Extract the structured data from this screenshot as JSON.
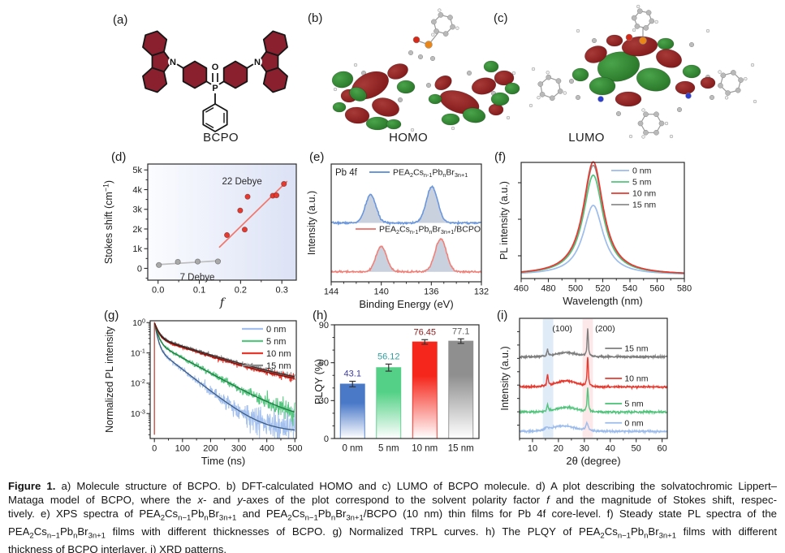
{
  "panels": {
    "a": {
      "label": "(a)",
      "name": "BCPO"
    },
    "b": {
      "label": "(b)",
      "name": "HOMO"
    },
    "c": {
      "label": "(c)",
      "name": "LUMO"
    },
    "d": {
      "label": "(d)"
    },
    "e": {
      "label": "(e)"
    },
    "f": {
      "label": "(f)"
    },
    "g": {
      "label": "(g)"
    },
    "h": {
      "label": "(h)"
    },
    "i": {
      "label": "(i)"
    }
  },
  "caption": {
    "lines": [
      "**Figure 1.**  a) Molecule structure of BCPO. b) DFT-calculated HOMO and c) LUMO of BCPO molecule. d) A plot describing the solvatochromic Lippert–",
      "Mataga model of BCPO, where the *x*- and *y*-axes of the plot correspond to the solvent polarity factor *f* and the magnitude of Stokes shift, respec-",
      "tively. e) XPS spectra of PEA~2~Cs~n−1~Pb~n~Br~3n+1~ and PEA~2~Cs~n−1~Pb~n~Br~3n+1~/BCPO (10 nm) thin films for Pb 4f core-level. f) Steady state PL spectra of the",
      "PEA~2~Cs~n−1~Pb~n~Br~3n+1~ films with different thicknesses of BCPO. g) Normalized TRPL curves. h) The PLQY of PEA~2~Cs~n−1~Pb~n~Br~3n+1~ films with different",
      "thickness of BCPO interlayer. i) XRD patterns."
    ]
  },
  "colors": {
    "red": "#e8392f",
    "blue_light": "#9cbcec",
    "green": "#52c47c",
    "gray": "#8c8c8c",
    "xps_blue": "#6b97dd",
    "xps_red": "#f08078",
    "carbazole_fill": "#8a1f2d",
    "orbital_red": "#7b1113",
    "orbital_green": "#206a20",
    "band_blue": "#cfe0f4",
    "band_pink": "#fadcdc"
  },
  "chart_data": [
    {
      "id": "d",
      "type": "scatter",
      "xlabel": "f",
      "xlabel_italic": true,
      "ylabel": "Stokes shift (cm^−1^)",
      "xlim": [
        -0.025,
        0.335
      ],
      "ylim": [
        -600,
        5300
      ],
      "xticks": [
        0.0,
        0.1,
        0.2,
        0.3
      ],
      "xtick_labels": [
        "0.0",
        "0.1",
        "0.2",
        "0.3"
      ],
      "yticks": [
        0,
        1000,
        2000,
        3000,
        4000,
        5000
      ],
      "ytick_labels": [
        "0",
        "1k",
        "2k",
        "3k",
        "4k",
        "5k"
      ],
      "x_minor": 0.05,
      "y_minor": 500,
      "bg_gradient": [
        "#fbfcff",
        "#dce2f5"
      ],
      "series": [
        {
          "name": "7 Debye",
          "color": "#a9a9a9",
          "line_color": "#bdbdbd",
          "points": [
            [
              0.002,
              170
            ],
            [
              0.048,
              330
            ],
            [
              0.096,
              345
            ],
            [
              0.145,
              350
            ]
          ],
          "fit_line": [
            [
              -0.005,
              185
            ],
            [
              0.152,
              390
            ]
          ]
        },
        {
          "name": "22 Debye",
          "color": "#e8392f",
          "line_color": "#f2766b",
          "points": [
            [
              0.167,
              1690
            ],
            [
              0.199,
              2940
            ],
            [
              0.21,
              1970
            ],
            [
              0.217,
              3640
            ],
            [
              0.278,
              3690
            ],
            [
              0.287,
              3710
            ],
            [
              0.305,
              4290
            ]
          ],
          "fit_line": [
            [
              0.148,
              1060
            ],
            [
              0.313,
              4430
            ]
          ]
        }
      ],
      "annotations": [
        {
          "text": "22 Debye",
          "x": 0.155,
          "y": 4430,
          "anchor": "start"
        },
        {
          "text": "7 Debye",
          "x": 0.095,
          "y": -430,
          "anchor": "middle"
        }
      ]
    },
    {
      "id": "e",
      "type": "xps",
      "xlabel": "Binding Energy (eV)",
      "ylabel": "Intensity (a.u.)",
      "xlim": [
        144,
        132
      ],
      "xticks": [
        144,
        140,
        136,
        132
      ],
      "x_minor": 1,
      "corner_label": "Pb 4f",
      "fill_color": "#93a3c0",
      "series": [
        {
          "name": "PEA~2~Cs~n-1~Pb~n~Br~3n+1~",
          "color": "#6b97dd",
          "baseline": 0.5,
          "peaks": [
            {
              "center": 140.85,
              "height": 0.24,
              "width": 0.42
            },
            {
              "center": 135.95,
              "height": 0.31,
              "width": 0.45
            }
          ]
        },
        {
          "name": "PEA~2~Cs~n-1~Pb~n~Br~3n+1~/BCPO",
          "color": "#f08078",
          "baseline": 0.085,
          "peaks": [
            {
              "center": 140.0,
              "height": 0.215,
              "width": 0.42
            },
            {
              "center": 135.25,
              "height": 0.28,
              "width": 0.45
            }
          ]
        }
      ]
    },
    {
      "id": "f",
      "type": "pl",
      "xlabel": "Wavelength (nm)",
      "ylabel": "PL intensity (a.u.)",
      "xlim": [
        460,
        580
      ],
      "xticks": [
        460,
        480,
        500,
        520,
        540,
        560,
        580
      ],
      "x_minor": 10,
      "peak_center": 513,
      "peak_width": 9,
      "series": [
        {
          "name": "0 nm",
          "color": "#9cbcec",
          "height": 0.6
        },
        {
          "name": "5 nm",
          "color": "#52c47c",
          "height": 0.86
        },
        {
          "name": "10 nm",
          "color": "#e8392f",
          "height": 0.975
        },
        {
          "name": "15 nm",
          "color": "#8c8c8c",
          "height": 0.945
        }
      ]
    },
    {
      "id": "g",
      "type": "decay",
      "xlabel": "Time (ns)",
      "ylabel": "Normalized PL intensity",
      "xlim": [
        -15,
        505
      ],
      "xticks": [
        0,
        100,
        200,
        300,
        400,
        500
      ],
      "x_minor": 50,
      "ylim": [
        0.00015,
        1.15
      ],
      "ylog_ticks": [
        {
          "v": 1,
          "label": "10^0^"
        },
        {
          "v": 0.1,
          "label": "10^-1^"
        },
        {
          "v": 0.01,
          "label": "10^-2^"
        },
        {
          "v": 0.001,
          "label": "10^-3^"
        }
      ],
      "series": [
        {
          "name": "0 nm",
          "color": "#a3c0ee",
          "fit_color": "#3c5a82",
          "A": [
            0.85,
            0.15
          ],
          "tau": [
            8,
            60
          ],
          "floor": 0.00025
        },
        {
          "name": "5 nm",
          "color": "#57c680",
          "fit_color": "#1d7a40",
          "A": [
            0.78,
            0.22
          ],
          "tau": [
            10,
            85
          ],
          "floor": 0.0005
        },
        {
          "name": "10 nm",
          "color": "#e8392f",
          "fit_color": "#6e120c",
          "A": [
            0.7,
            0.3
          ],
          "tau": [
            12,
            140
          ],
          "floor": 0.006
        },
        {
          "name": "15 nm",
          "color": "#8c8c8c",
          "fit_color": "#2b2b2b",
          "A": [
            0.68,
            0.32
          ],
          "tau": [
            13,
            145
          ],
          "floor": 0.0062
        }
      ]
    },
    {
      "id": "h",
      "type": "bar",
      "ylabel": "PLQY (%)",
      "ylim": [
        0,
        90
      ],
      "yticks": [
        0,
        30,
        60,
        90
      ],
      "y_minor": 10,
      "categories": [
        "0 nm",
        "5 nm",
        "10 nm",
        "15 nm"
      ],
      "values": [
        43.1,
        56.12,
        76.45,
        77.1
      ],
      "errors": [
        2.2,
        2.8,
        1.8,
        1.8
      ],
      "value_labels": [
        "43.1",
        "56.12",
        "76.45",
        "77.1"
      ],
      "bar_colors": [
        "#4a79c8",
        "#55d187",
        "#f5261b",
        "#8f8f8f"
      ],
      "label_colors": [
        "#3c3c9c",
        "#2f9e9e",
        "#8c1a1a",
        "#5f5f5f"
      ]
    },
    {
      "id": "i",
      "type": "xrd",
      "xlabel": "2θ (degree)",
      "ylabel": "Intensity (a.u.)",
      "xlim": [
        5,
        62
      ],
      "xticks": [
        10,
        20,
        30,
        40,
        50,
        60
      ],
      "x_minor": 5,
      "bands": [
        {
          "from": 14.0,
          "to": 18.0,
          "color": "#cfe0f4"
        },
        {
          "from": 29.3,
          "to": 33.3,
          "color": "#fadcdc"
        }
      ],
      "peak_labels": [
        {
          "text": "(100)",
          "x": 21.5
        },
        {
          "text": "(200)",
          "x": 38
        }
      ],
      "series": [
        {
          "name": "15 nm",
          "color": "#7d7d7d",
          "offset": 0.68,
          "peaks": [
            {
              "c": 15.8,
              "h": 0.055,
              "w": 0.3
            },
            {
              "c": 31.3,
              "h": 0.23,
              "w": 0.28
            }
          ],
          "hump": {
            "c": 23,
            "h": 0.035,
            "w": 4
          }
        },
        {
          "name": "10 nm",
          "color": "#e8392f",
          "offset": 0.43,
          "peaks": [
            {
              "c": 15.8,
              "h": 0.095,
              "w": 0.3
            },
            {
              "c": 31.3,
              "h": 0.245,
              "w": 0.28
            }
          ],
          "hump": {
            "c": 23,
            "h": 0.05,
            "w": 4
          }
        },
        {
          "name": "5 nm",
          "color": "#52c47c",
          "offset": 0.22,
          "peaks": [
            {
              "c": 15.8,
              "h": 0.055,
              "w": 0.3
            },
            {
              "c": 31.3,
              "h": 0.2,
              "w": 0.28
            }
          ],
          "hump": {
            "c": 23,
            "h": 0.04,
            "w": 4
          }
        },
        {
          "name": "0 nm",
          "color": "#9cbcec",
          "offset": 0.06,
          "peaks": [
            {
              "c": 15.5,
              "h": 0.02,
              "w": 0.8
            },
            {
              "c": 31.0,
              "h": 0.065,
              "w": 0.5
            }
          ],
          "hump": {
            "c": 22,
            "h": 0.045,
            "w": 4.5
          }
        }
      ]
    }
  ]
}
